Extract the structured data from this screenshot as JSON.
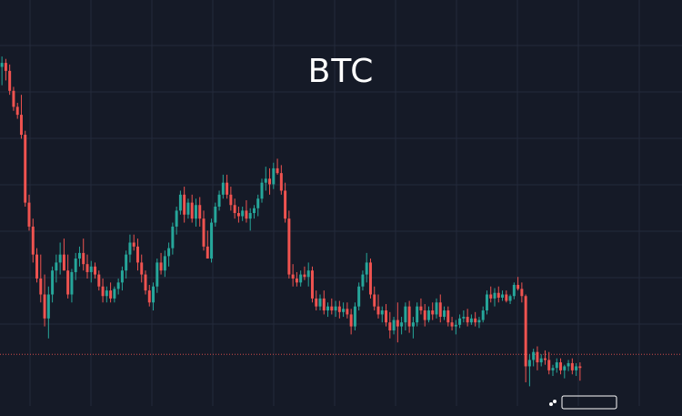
{
  "chart_data": {
    "type": "candlestick",
    "title": "BTC",
    "ylim": [
      -400,
      40
    ],
    "grid": true,
    "colors": {
      "up": "#26a69a",
      "down": "#ef5350",
      "background": "#151a27",
      "grid": "#232a3b"
    },
    "reference_line": {
      "value": -365,
      "color": "#ef5350",
      "style": "dotted"
    },
    "candles": [
      [
        -5,
        8,
        -28,
        0
      ],
      [
        0,
        5,
        -22,
        -10
      ],
      [
        -10,
        -2,
        -40,
        -35
      ],
      [
        -35,
        -30,
        -60,
        -55
      ],
      [
        -55,
        -50,
        -70,
        -65
      ],
      [
        -65,
        -40,
        -95,
        -90
      ],
      [
        -90,
        -85,
        -180,
        -175
      ],
      [
        -175,
        -165,
        -210,
        -205
      ],
      [
        -205,
        -195,
        -250,
        -240
      ],
      [
        -240,
        -232,
        -275,
        -270
      ],
      [
        -270,
        -240,
        -300,
        -290
      ],
      [
        -290,
        -265,
        -330,
        -320
      ],
      [
        -320,
        -280,
        -345,
        -290
      ],
      [
        -290,
        -255,
        -300,
        -260
      ],
      [
        -260,
        -240,
        -275,
        -250
      ],
      [
        -250,
        -225,
        -265,
        -240
      ],
      [
        -240,
        -220,
        -260,
        -260
      ],
      [
        -260,
        -240,
        -295,
        -290
      ],
      [
        -290,
        -258,
        -300,
        -262
      ],
      [
        -262,
        -238,
        -272,
        -245
      ],
      [
        -245,
        -230,
        -255,
        -238
      ],
      [
        -238,
        -220,
        -260,
        -252
      ],
      [
        -252,
        -240,
        -270,
        -262
      ],
      [
        -262,
        -248,
        -275,
        -255
      ],
      [
        -255,
        -250,
        -270,
        -265
      ],
      [
        -265,
        -260,
        -285,
        -280
      ],
      [
        -280,
        -270,
        -300,
        -292
      ],
      [
        -292,
        -280,
        -300,
        -285
      ],
      [
        -285,
        -275,
        -300,
        -295
      ],
      [
        -295,
        -280,
        -300,
        -283
      ],
      [
        -283,
        -270,
        -290,
        -275
      ],
      [
        -275,
        -255,
        -285,
        -260
      ],
      [
        -260,
        -235,
        -270,
        -240
      ],
      [
        -240,
        -215,
        -250,
        -225
      ],
      [
        -225,
        -215,
        -235,
        -230
      ],
      [
        -230,
        -220,
        -260,
        -250
      ],
      [
        -250,
        -240,
        -275,
        -265
      ],
      [
        -265,
        -260,
        -290,
        -285
      ],
      [
        -285,
        -278,
        -305,
        -300
      ],
      [
        -300,
        -275,
        -310,
        -280
      ],
      [
        -280,
        -245,
        -288,
        -250
      ],
      [
        -250,
        -238,
        -265,
        -260
      ],
      [
        -260,
        -235,
        -268,
        -242
      ],
      [
        -242,
        -225,
        -255,
        -232
      ],
      [
        -232,
        -200,
        -240,
        -205
      ],
      [
        -205,
        -180,
        -215,
        -185
      ],
      [
        -185,
        -160,
        -190,
        -165
      ],
      [
        -165,
        -155,
        -200,
        -190
      ],
      [
        -190,
        -170,
        -195,
        -175
      ],
      [
        -175,
        -165,
        -200,
        -195
      ],
      [
        -195,
        -170,
        -205,
        -178
      ],
      [
        -178,
        -168,
        -205,
        -195
      ],
      [
        -195,
        -185,
        -235,
        -230
      ],
      [
        -230,
        -210,
        -245,
        -245
      ],
      [
        -245,
        -195,
        -250,
        -200
      ],
      [
        -200,
        -175,
        -205,
        -180
      ],
      [
        -180,
        -160,
        -185,
        -165
      ],
      [
        -165,
        -140,
        -170,
        -150
      ],
      [
        -150,
        -140,
        -170,
        -165
      ],
      [
        -165,
        -155,
        -185,
        -178
      ],
      [
        -178,
        -170,
        -195,
        -188
      ],
      [
        -188,
        -180,
        -200,
        -192
      ],
      [
        -192,
        -180,
        -198,
        -185
      ],
      [
        -185,
        -172,
        -200,
        -195
      ],
      [
        -195,
        -182,
        -210,
        -188
      ],
      [
        -188,
        -178,
        -195,
        -182
      ],
      [
        -182,
        -165,
        -192,
        -170
      ],
      [
        -170,
        -145,
        -175,
        -150
      ],
      [
        -150,
        -130,
        -160,
        -145
      ],
      [
        -145,
        -132,
        -165,
        -152
      ],
      [
        -152,
        -125,
        -158,
        -132
      ],
      [
        -132,
        -120,
        -140,
        -138
      ],
      [
        -138,
        -128,
        -165,
        -160
      ],
      [
        -160,
        -150,
        -200,
        -195
      ],
      [
        -195,
        -185,
        -270,
        -265
      ],
      [
        -265,
        -252,
        -280,
        -270
      ],
      [
        -270,
        -262,
        -280,
        -275
      ],
      [
        -275,
        -260,
        -280,
        -265
      ],
      [
        -265,
        -255,
        -272,
        -268
      ],
      [
        -268,
        -250,
        -280,
        -260
      ],
      [
        -260,
        -255,
        -300,
        -295
      ],
      [
        -295,
        -285,
        -310,
        -305
      ],
      [
        -305,
        -290,
        -310,
        -295
      ],
      [
        -295,
        -285,
        -315,
        -310
      ],
      [
        -310,
        -300,
        -318,
        -305
      ],
      [
        -305,
        -295,
        -315,
        -310
      ],
      [
        -310,
        -298,
        -318,
        -305
      ],
      [
        -305,
        -298,
        -320,
        -312
      ],
      [
        -312,
        -300,
        -318,
        -308
      ],
      [
        -308,
        -300,
        -320,
        -315
      ],
      [
        -315,
        -308,
        -340,
        -330
      ],
      [
        -330,
        -300,
        -335,
        -305
      ],
      [
        -305,
        -275,
        -310,
        -280
      ],
      [
        -280,
        -260,
        -285,
        -265
      ],
      [
        -265,
        -238,
        -275,
        -250
      ],
      [
        -250,
        -245,
        -295,
        -290
      ],
      [
        -290,
        -280,
        -310,
        -305
      ],
      [
        -305,
        -290,
        -320,
        -315
      ],
      [
        -315,
        -305,
        -325,
        -310
      ],
      [
        -310,
        -302,
        -330,
        -325
      ],
      [
        -325,
        -312,
        -345,
        -335
      ],
      [
        -335,
        -318,
        -340,
        -322
      ],
      [
        -322,
        -300,
        -350,
        -330
      ],
      [
        -330,
        -318,
        -340,
        -325
      ],
      [
        -325,
        -300,
        -335,
        -305
      ],
      [
        -305,
        -298,
        -338,
        -330
      ],
      [
        -330,
        -318,
        -345,
        -325
      ],
      [
        -325,
        -300,
        -330,
        -305
      ],
      [
        -305,
        -295,
        -315,
        -310
      ],
      [
        -310,
        -302,
        -330,
        -322
      ],
      [
        -322,
        -305,
        -325,
        -310
      ],
      [
        -310,
        -300,
        -322,
        -315
      ],
      [
        -315,
        -295,
        -320,
        -300
      ],
      [
        -300,
        -290,
        -325,
        -318
      ],
      [
        -318,
        -305,
        -322,
        -310
      ],
      [
        -310,
        -305,
        -330,
        -325
      ],
      [
        -325,
        -318,
        -335,
        -330
      ],
      [
        -330,
        -322,
        -340,
        -328
      ],
      [
        -328,
        -315,
        -332,
        -320
      ],
      [
        -320,
        -310,
        -325,
        -318
      ],
      [
        -318,
        -308,
        -330,
        -325
      ],
      [
        -325,
        -315,
        -328,
        -320
      ],
      [
        -320,
        -312,
        -330,
        -325
      ],
      [
        -325,
        -318,
        -332,
        -322
      ],
      [
        -322,
        -305,
        -325,
        -310
      ],
      [
        -310,
        -285,
        -315,
        -290
      ],
      [
        -290,
        -280,
        -300,
        -295
      ],
      [
        -295,
        -282,
        -305,
        -288
      ],
      [
        -288,
        -280,
        -300,
        -294
      ],
      [
        -294,
        -285,
        -298,
        -290
      ],
      [
        -290,
        -285,
        -300,
        -298
      ],
      [
        -298,
        -290,
        -302,
        -292
      ],
      [
        -292,
        -275,
        -296,
        -278
      ],
      [
        -278,
        -268,
        -285,
        -283
      ],
      [
        -283,
        -275,
        -300,
        -292
      ],
      [
        -292,
        -290,
        -400,
        -380
      ],
      [
        -380,
        -365,
        -405,
        -372
      ],
      [
        -372,
        -358,
        -380,
        -362
      ],
      [
        -362,
        -355,
        -385,
        -375
      ],
      [
        -375,
        -365,
        -380,
        -370
      ],
      [
        -370,
        -360,
        -378,
        -372
      ],
      [
        -372,
        -362,
        -390,
        -385
      ],
      [
        -385,
        -378,
        -392,
        -382
      ],
      [
        -382,
        -370,
        -388,
        -375
      ],
      [
        -375,
        -370,
        -390,
        -385
      ],
      [
        -385,
        -378,
        -395,
        -380
      ],
      [
        -380,
        -372,
        -386,
        -376
      ],
      [
        -376,
        -370,
        -390,
        -385
      ],
      [
        -385,
        -376,
        -392,
        -380
      ],
      [
        -380,
        -375,
        -398,
        -382
      ]
    ]
  }
}
